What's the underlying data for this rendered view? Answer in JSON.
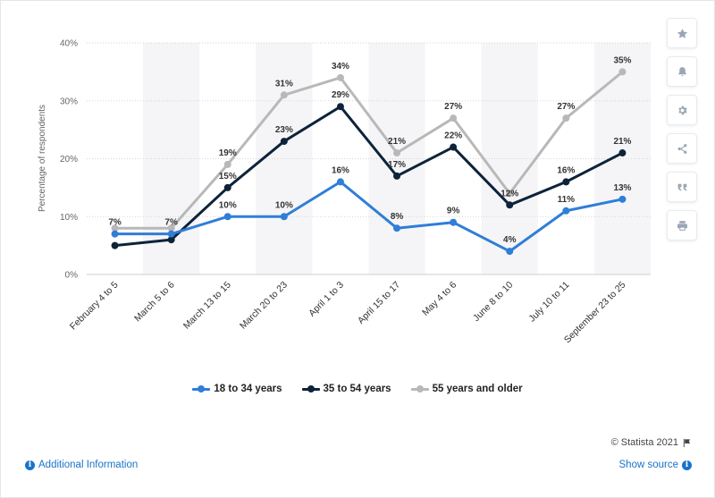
{
  "chart_data": {
    "type": "line",
    "categories": [
      "February 4 to 5",
      "March 5 to 6",
      "March 13 to 15",
      "March 20 to 23",
      "April 1 to 3",
      "April 15 to 17",
      "May 4 to 6",
      "June 8 to 10",
      "July 10 to 11",
      "September 23 to 25"
    ],
    "series": [
      {
        "name": "18 to 34 years",
        "color": "#2f7ed8",
        "values": [
          7,
          7,
          10,
          10,
          16,
          8,
          9,
          4,
          11,
          13
        ]
      },
      {
        "name": "35 to 54 years",
        "color": "#0d233a",
        "values": [
          5,
          6,
          15,
          23,
          29,
          17,
          22,
          12,
          16,
          21
        ]
      },
      {
        "name": "55 years and older",
        "color": "#b8b8b8",
        "values": [
          8,
          8,
          19,
          31,
          34,
          21,
          27,
          14,
          27,
          35
        ]
      }
    ],
    "data_labels": {
      "18 to 34 years": [
        "7%",
        "7%",
        "10%",
        "10%",
        "16%",
        "8%",
        "9%",
        "4%",
        "11%",
        "13%"
      ],
      "35 to 54 years": [
        "",
        "",
        "15%",
        "23%",
        "29%",
        "17%",
        "22%",
        "12%",
        "16%",
        "21%"
      ],
      "55 years and older": [
        "",
        "",
        "19%",
        "31%",
        "34%",
        "21%",
        "27%",
        "",
        "27%",
        "35%"
      ]
    },
    "ylabel": "Percentage of respondents",
    "xlabel": "",
    "ylim": [
      0,
      40
    ],
    "yticks": [
      "0%",
      "10%",
      "20%",
      "30%",
      "40%"
    ],
    "grid": true,
    "legend_position": "bottom"
  },
  "legend": {
    "items": [
      {
        "label": "18 to 34 years",
        "color": "#2f7ed8"
      },
      {
        "label": "35 to 54 years",
        "color": "#0d233a"
      },
      {
        "label": "55 years and older",
        "color": "#b8b8b8"
      }
    ]
  },
  "toolbar": {
    "icons": [
      "star-icon",
      "bell-icon",
      "gear-icon",
      "share-icon",
      "quote-icon",
      "print-icon"
    ]
  },
  "footer": {
    "credit": "© Statista 2021",
    "additional_info": "Additional Information",
    "show_source": "Show source"
  }
}
